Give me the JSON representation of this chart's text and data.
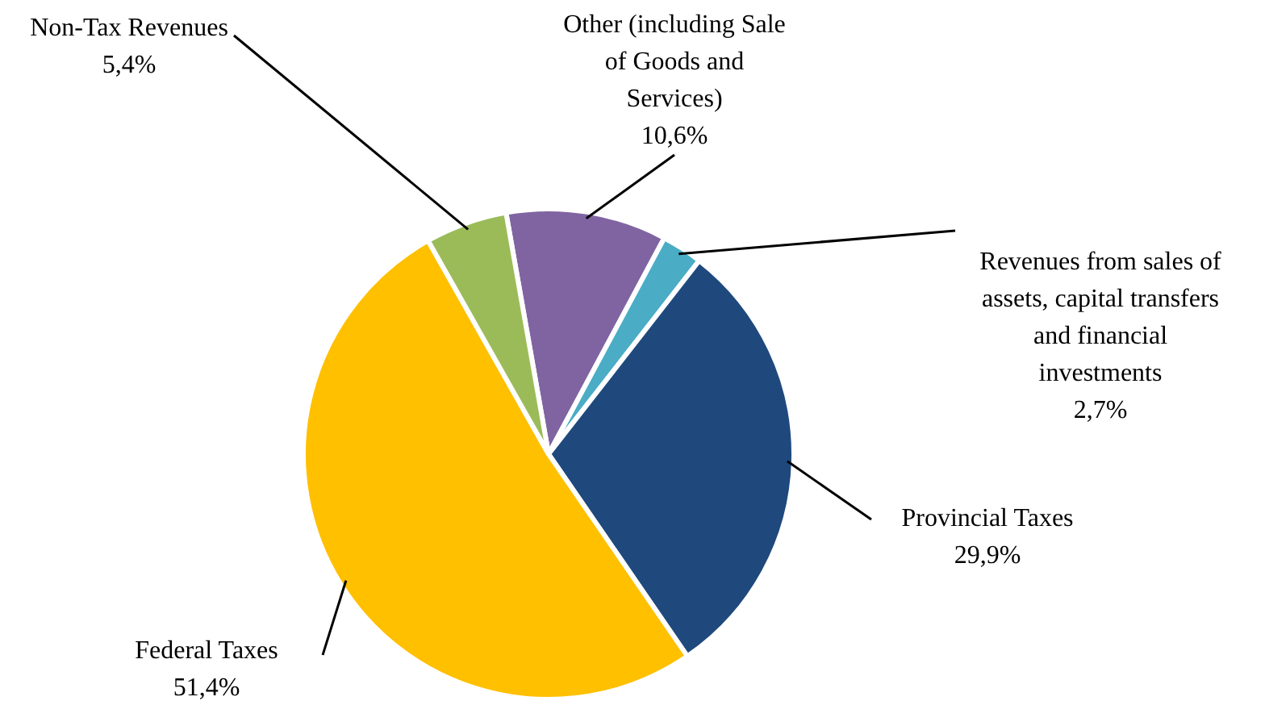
{
  "chart_data": {
    "type": "pie",
    "categories": [
      "Other (including Sale of Goods and Services)",
      "Revenues from sales of assets, capital transfers and financial investments",
      "Provincial Taxes",
      "Federal Taxes",
      "Non-Tax Revenues"
    ],
    "values": [
      10.6,
      2.7,
      29.9,
      51.4,
      5.4
    ],
    "colors": [
      "#8064a2",
      "#4bacc6",
      "#1f497d",
      "#ffc000",
      "#9bbb59"
    ],
    "value_labels": [
      "10,6%",
      "2,7%",
      "29,9%",
      "51,4%",
      "5,4%"
    ],
    "legend": false
  }
}
